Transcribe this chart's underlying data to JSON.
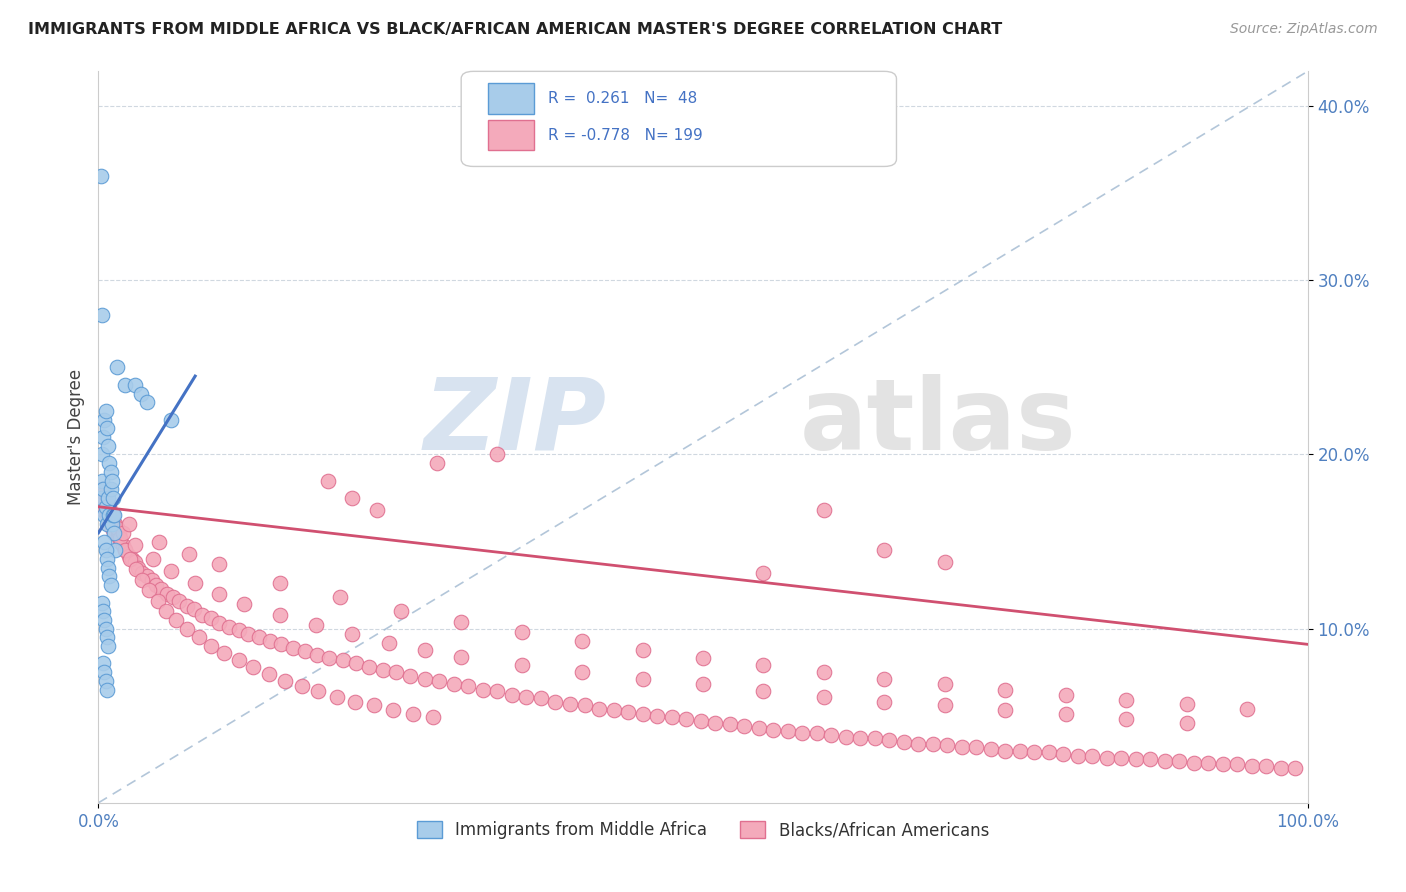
{
  "title": "IMMIGRANTS FROM MIDDLE AFRICA VS BLACK/AFRICAN AMERICAN MASTER'S DEGREE CORRELATION CHART",
  "source": "Source: ZipAtlas.com",
  "ylabel": "Master's Degree",
  "xlim": [
    0.0,
    1.0
  ],
  "ylim": [
    0.0,
    0.42
  ],
  "ytick_vals": [
    0.1,
    0.2,
    0.3,
    0.4
  ],
  "ytick_labels": [
    "10.0%",
    "20.0%",
    "30.0%",
    "40.0%"
  ],
  "xtick_vals": [
    0.0,
    1.0
  ],
  "xtick_labels": [
    "0.0%",
    "100.0%"
  ],
  "color_blue_fill": "#A8CCEA",
  "color_blue_edge": "#5B9BD5",
  "color_pink_fill": "#F4AABB",
  "color_pink_edge": "#E07090",
  "color_blue_line": "#4472C4",
  "color_pink_line": "#D05070",
  "color_dashed": "#A0B8D0",
  "blue_line_x0": 0.0,
  "blue_line_x1": 0.08,
  "blue_line_y0": 0.155,
  "blue_line_y1": 0.245,
  "pink_line_x0": 0.0,
  "pink_line_x1": 1.0,
  "pink_line_y0": 0.17,
  "pink_line_y1": 0.091,
  "blue_scatter_x": [
    0.002,
    0.003,
    0.004,
    0.005,
    0.006,
    0.007,
    0.008,
    0.009,
    0.01,
    0.011,
    0.012,
    0.013,
    0.014,
    0.003,
    0.004,
    0.005,
    0.006,
    0.007,
    0.008,
    0.009,
    0.01,
    0.011,
    0.012,
    0.013,
    0.005,
    0.006,
    0.007,
    0.008,
    0.009,
    0.01,
    0.003,
    0.004,
    0.005,
    0.006,
    0.007,
    0.008,
    0.004,
    0.005,
    0.006,
    0.007,
    0.022,
    0.03,
    0.035,
    0.04,
    0.015,
    0.002,
    0.003,
    0.06
  ],
  "blue_scatter_y": [
    0.175,
    0.185,
    0.18,
    0.165,
    0.17,
    0.16,
    0.175,
    0.165,
    0.18,
    0.16,
    0.165,
    0.155,
    0.145,
    0.2,
    0.21,
    0.22,
    0.225,
    0.215,
    0.205,
    0.195,
    0.19,
    0.185,
    0.175,
    0.165,
    0.15,
    0.145,
    0.14,
    0.135,
    0.13,
    0.125,
    0.115,
    0.11,
    0.105,
    0.1,
    0.095,
    0.09,
    0.08,
    0.075,
    0.07,
    0.065,
    0.24,
    0.24,
    0.235,
    0.23,
    0.25,
    0.36,
    0.28,
    0.22
  ],
  "pink_scatter_x": [
    0.003,
    0.004,
    0.005,
    0.006,
    0.007,
    0.008,
    0.009,
    0.01,
    0.011,
    0.012,
    0.013,
    0.014,
    0.015,
    0.016,
    0.017,
    0.018,
    0.02,
    0.022,
    0.025,
    0.028,
    0.03,
    0.033,
    0.036,
    0.04,
    0.044,
    0.048,
    0.052,
    0.057,
    0.062,
    0.067,
    0.073,
    0.079,
    0.086,
    0.093,
    0.1,
    0.108,
    0.116,
    0.124,
    0.133,
    0.142,
    0.151,
    0.161,
    0.171,
    0.181,
    0.191,
    0.202,
    0.213,
    0.224,
    0.235,
    0.246,
    0.258,
    0.27,
    0.282,
    0.294,
    0.306,
    0.318,
    0.33,
    0.342,
    0.354,
    0.366,
    0.378,
    0.39,
    0.402,
    0.414,
    0.426,
    0.438,
    0.45,
    0.462,
    0.474,
    0.486,
    0.498,
    0.51,
    0.522,
    0.534,
    0.546,
    0.558,
    0.57,
    0.582,
    0.594,
    0.606,
    0.618,
    0.63,
    0.642,
    0.654,
    0.666,
    0.678,
    0.69,
    0.702,
    0.714,
    0.726,
    0.738,
    0.75,
    0.762,
    0.774,
    0.786,
    0.798,
    0.81,
    0.822,
    0.834,
    0.846,
    0.858,
    0.87,
    0.882,
    0.894,
    0.906,
    0.918,
    0.93,
    0.942,
    0.954,
    0.966,
    0.978,
    0.99,
    0.003,
    0.005,
    0.007,
    0.009,
    0.012,
    0.015,
    0.018,
    0.022,
    0.026,
    0.031,
    0.036,
    0.042,
    0.049,
    0.056,
    0.064,
    0.073,
    0.083,
    0.093,
    0.104,
    0.116,
    0.128,
    0.141,
    0.154,
    0.168,
    0.182,
    0.197,
    0.212,
    0.228,
    0.244,
    0.26,
    0.277,
    0.01,
    0.02,
    0.03,
    0.045,
    0.06,
    0.08,
    0.1,
    0.12,
    0.15,
    0.18,
    0.21,
    0.24,
    0.27,
    0.3,
    0.35,
    0.4,
    0.45,
    0.5,
    0.55,
    0.6,
    0.65,
    0.7,
    0.75,
    0.8,
    0.85,
    0.9,
    0.025,
    0.05,
    0.075,
    0.1,
    0.15,
    0.2,
    0.25,
    0.3,
    0.35,
    0.4,
    0.45,
    0.5,
    0.55,
    0.6,
    0.65,
    0.7,
    0.75,
    0.8,
    0.85,
    0.9,
    0.95,
    0.55,
    0.6,
    0.65,
    0.7,
    0.19,
    0.21,
    0.23,
    0.28,
    0.33
  ],
  "pink_scatter_y": [
    0.172,
    0.168,
    0.175,
    0.17,
    0.165,
    0.16,
    0.168,
    0.163,
    0.158,
    0.162,
    0.155,
    0.16,
    0.158,
    0.153,
    0.155,
    0.15,
    0.148,
    0.145,
    0.142,
    0.14,
    0.138,
    0.135,
    0.132,
    0.13,
    0.128,
    0.125,
    0.123,
    0.12,
    0.118,
    0.116,
    0.113,
    0.111,
    0.108,
    0.106,
    0.103,
    0.101,
    0.099,
    0.097,
    0.095,
    0.093,
    0.091,
    0.089,
    0.087,
    0.085,
    0.083,
    0.082,
    0.08,
    0.078,
    0.076,
    0.075,
    0.073,
    0.071,
    0.07,
    0.068,
    0.067,
    0.065,
    0.064,
    0.062,
    0.061,
    0.06,
    0.058,
    0.057,
    0.056,
    0.054,
    0.053,
    0.052,
    0.051,
    0.05,
    0.049,
    0.048,
    0.047,
    0.046,
    0.045,
    0.044,
    0.043,
    0.042,
    0.041,
    0.04,
    0.04,
    0.039,
    0.038,
    0.037,
    0.037,
    0.036,
    0.035,
    0.034,
    0.034,
    0.033,
    0.032,
    0.032,
    0.031,
    0.03,
    0.03,
    0.029,
    0.029,
    0.028,
    0.027,
    0.027,
    0.026,
    0.026,
    0.025,
    0.025,
    0.024,
    0.024,
    0.023,
    0.023,
    0.022,
    0.022,
    0.021,
    0.021,
    0.02,
    0.02,
    0.18,
    0.178,
    0.175,
    0.17,
    0.165,
    0.158,
    0.152,
    0.145,
    0.14,
    0.134,
    0.128,
    0.122,
    0.116,
    0.11,
    0.105,
    0.1,
    0.095,
    0.09,
    0.086,
    0.082,
    0.078,
    0.074,
    0.07,
    0.067,
    0.064,
    0.061,
    0.058,
    0.056,
    0.053,
    0.051,
    0.049,
    0.162,
    0.155,
    0.148,
    0.14,
    0.133,
    0.126,
    0.12,
    0.114,
    0.108,
    0.102,
    0.097,
    0.092,
    0.088,
    0.084,
    0.079,
    0.075,
    0.071,
    0.068,
    0.064,
    0.061,
    0.058,
    0.056,
    0.053,
    0.051,
    0.048,
    0.046,
    0.16,
    0.15,
    0.143,
    0.137,
    0.126,
    0.118,
    0.11,
    0.104,
    0.098,
    0.093,
    0.088,
    0.083,
    0.079,
    0.075,
    0.071,
    0.068,
    0.065,
    0.062,
    0.059,
    0.057,
    0.054,
    0.132,
    0.168,
    0.145,
    0.138,
    0.185,
    0.175,
    0.168,
    0.195,
    0.2
  ]
}
